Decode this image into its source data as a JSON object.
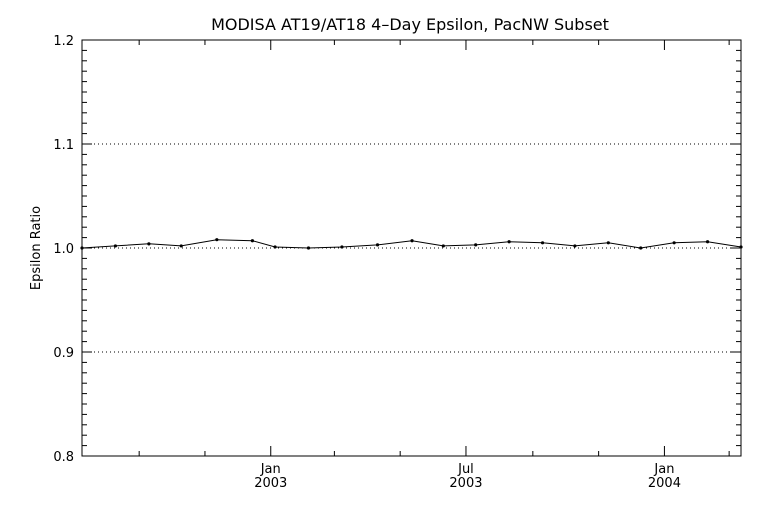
{
  "chart_data": {
    "type": "line",
    "title": "MODISA AT19/AT18 4–Day Epsilon, PacNW Subset",
    "xlabel": "",
    "ylabel": "Epsilon Ratio",
    "ylim": [
      0.8,
      1.2
    ],
    "yticks": [
      0.8,
      0.9,
      1.0,
      1.1,
      1.2
    ],
    "ytick_labels": [
      "0.8",
      "0.9",
      "1.0",
      "1.1",
      "1.2"
    ],
    "xlim": [
      "2002-07-10",
      "2004-03-12"
    ],
    "xticks": [
      {
        "date": "2003-01-01",
        "label": "Jan",
        "sublabel": "2003"
      },
      {
        "date": "2003-07-01",
        "label": "Jul",
        "sublabel": "2003"
      },
      {
        "date": "2004-01-01",
        "label": "Jan",
        "sublabel": "2004"
      }
    ],
    "grid_y": [
      0.9,
      1.0,
      1.1
    ],
    "series": [
      {
        "x": [
          "2002-07-10",
          "2002-08-10",
          "2002-09-10",
          "2002-10-10",
          "2002-11-12",
          "2002-12-15",
          "2003-01-05",
          "2003-02-05",
          "2003-03-08",
          "2003-04-10",
          "2003-05-12",
          "2003-06-10",
          "2003-07-10",
          "2003-08-10",
          "2003-09-10",
          "2003-10-10",
          "2003-11-10",
          "2003-12-10",
          "2004-01-10",
          "2004-02-10",
          "2004-03-12"
        ],
        "values": [
          1.0,
          1.002,
          1.004,
          1.002,
          1.008,
          1.007,
          1.001,
          1.0,
          1.001,
          1.003,
          1.007,
          1.002,
          1.003,
          1.006,
          1.005,
          1.002,
          1.005,
          1.0,
          1.005,
          1.006,
          1.001
        ]
      }
    ]
  }
}
